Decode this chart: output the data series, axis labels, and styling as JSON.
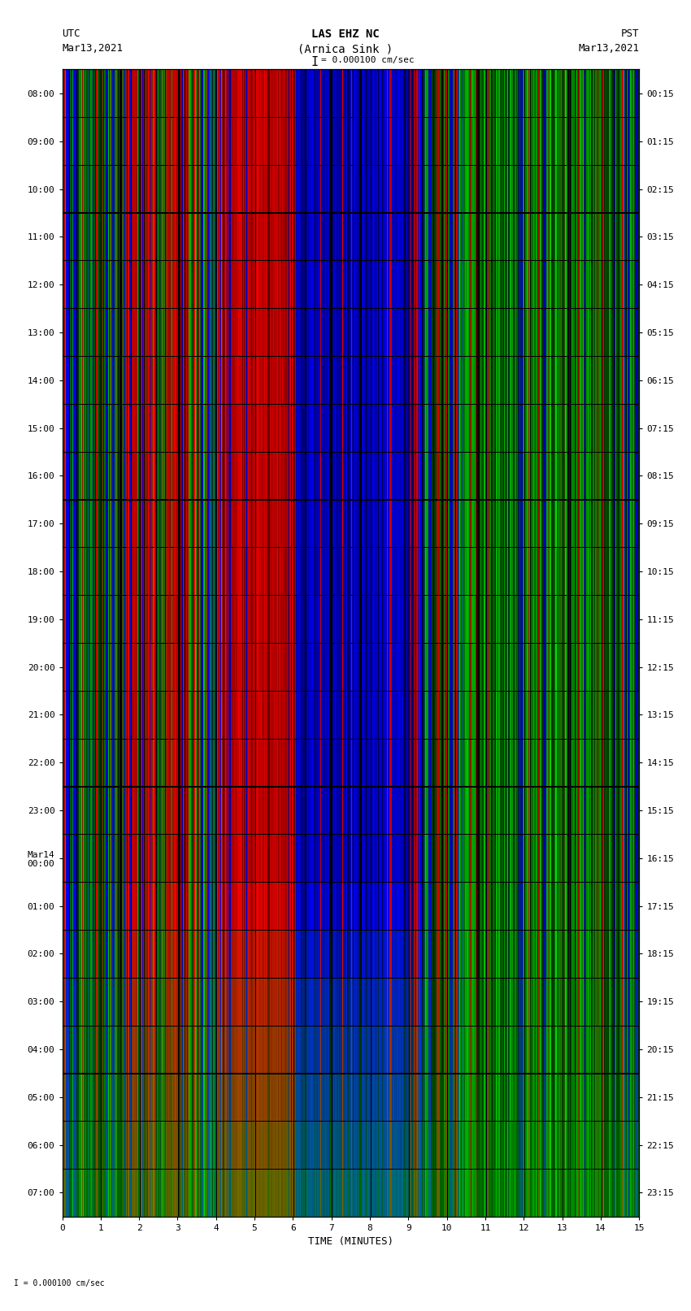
{
  "title_line1": "LAS EHZ NC",
  "title_line2": "(Arnica Sink )",
  "scale_label": "I = 0.000100 cm/sec",
  "left_header": "UTC",
  "left_date": "Mar13,2021",
  "right_header": "PST",
  "right_date": "Mar13,2021",
  "utc_times": [
    "08:00",
    "09:00",
    "10:00",
    "11:00",
    "12:00",
    "13:00",
    "14:00",
    "15:00",
    "16:00",
    "17:00",
    "18:00",
    "19:00",
    "20:00",
    "21:00",
    "22:00",
    "23:00",
    "Mar14\n00:00",
    "01:00",
    "02:00",
    "03:00",
    "04:00",
    "05:00",
    "06:00",
    "07:00"
  ],
  "pst_times": [
    "00:15",
    "01:15",
    "02:15",
    "03:15",
    "04:15",
    "05:15",
    "06:15",
    "07:15",
    "08:15",
    "09:15",
    "10:15",
    "11:15",
    "12:15",
    "13:15",
    "14:15",
    "15:15",
    "16:15",
    "17:15",
    "18:15",
    "19:15",
    "20:15",
    "21:15",
    "22:15",
    "23:15"
  ],
  "xlabel": "TIME (MINUTES)",
  "x_ticks": [
    0,
    1,
    2,
    3,
    4,
    5,
    6,
    7,
    8,
    9,
    10,
    11,
    12,
    13,
    14,
    15
  ],
  "bg_color": "#000000",
  "fig_bg": "#ffffff",
  "font_family": "monospace",
  "font_size": 10
}
